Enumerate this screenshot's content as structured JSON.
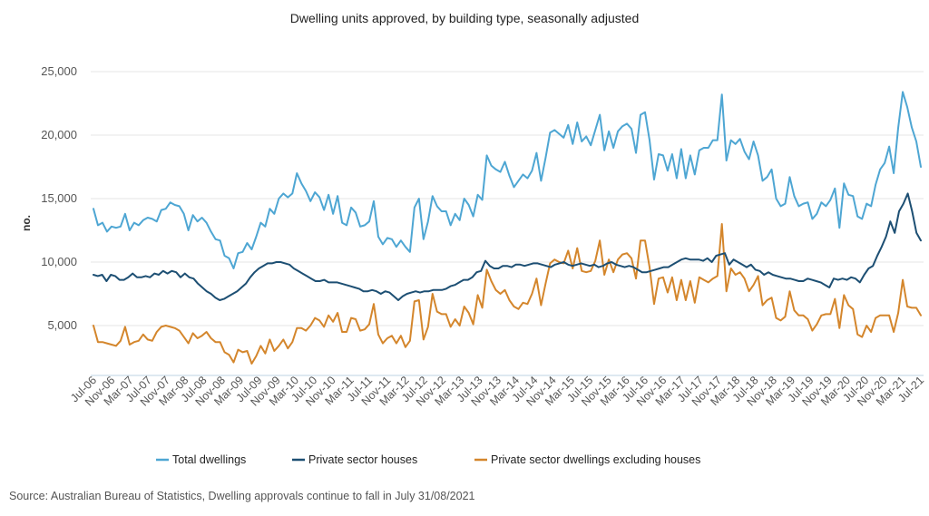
{
  "chart_data": {
    "type": "line",
    "title": "Dwelling units approved, by building type, seasonally adjusted",
    "ylabel": "no.",
    "xlabel": "",
    "ylim": [
      0,
      25000
    ],
    "yticks": [
      "5,000",
      "10,000",
      "15,000",
      "20,000",
      "25,000"
    ],
    "ytick_values": [
      5000,
      10000,
      15000,
      20000,
      25000
    ],
    "xtick_labels": [
      "Jul-06",
      "Nov-06",
      "Mar-07",
      "Jul-07",
      "Nov-07",
      "Mar-08",
      "Jul-08",
      "Nov-08",
      "Mar-09",
      "Jul-09",
      "Nov-09",
      "Mar-10",
      "Jul-10",
      "Nov-10",
      "Mar-11",
      "Jul-11",
      "Nov-11",
      "Mar-12",
      "Jul-12",
      "Nov-12",
      "Mar-13",
      "Jul-13",
      "Nov-13",
      "Mar-14",
      "Jul-14",
      "Nov-14",
      "Mar-15",
      "Jul-15",
      "Nov-15",
      "Mar-16",
      "Jul-16",
      "Nov-16",
      "Mar-17",
      "Jul-17",
      "Nov-17",
      "Mar-18",
      "Jul-18",
      "Nov-18",
      "Mar-19",
      "Jul-19",
      "Nov-19",
      "Mar-20",
      "Jul-20",
      "Nov-20",
      "Mar-21",
      "Jul-21"
    ],
    "x_start": "Jul-06",
    "x_end": "Jul-21",
    "grid": true,
    "legend_position": "bottom",
    "series": [
      {
        "name": "Total dwellings",
        "color": "#4ea6d3",
        "values": [
          14200,
          12900,
          13100,
          12400,
          12800,
          12700,
          12800,
          13800,
          12500,
          13100,
          12900,
          13300,
          13500,
          13400,
          13200,
          14100,
          14200,
          14700,
          14500,
          14400,
          13800,
          12500,
          13700,
          13200,
          13500,
          13100,
          12400,
          11800,
          11700,
          10500,
          10300,
          9500,
          10700,
          10800,
          11500,
          11000,
          12000,
          13100,
          12800,
          14200,
          13800,
          15000,
          15400,
          15100,
          15400,
          17000,
          16200,
          15600,
          14800,
          15500,
          15100,
          14100,
          15300,
          13800,
          15200,
          13100,
          12900,
          14300,
          13900,
          12800,
          12900,
          13200,
          14800,
          12000,
          11400,
          11900,
          11800,
          11200,
          11700,
          11200,
          10800,
          14300,
          15000,
          11800,
          13200,
          15200,
          14400,
          14000,
          14000,
          12900,
          13800,
          13300,
          15000,
          14500,
          13600,
          15300,
          14900,
          18400,
          17600,
          17300,
          17100,
          17900,
          16800,
          15900,
          16400,
          16900,
          16600,
          17200,
          18600,
          16400,
          18200,
          20200,
          20400,
          20100,
          19800,
          20800,
          19300,
          21000,
          19500,
          19900,
          19200,
          20400,
          21600,
          18800,
          20300,
          19000,
          20300,
          20700,
          20900,
          20500,
          18600,
          21600,
          21800,
          19600,
          16500,
          18500,
          18400,
          17200,
          18500,
          16600,
          18900,
          16600,
          18400,
          16900,
          18800,
          19000,
          19000,
          19600,
          19600,
          23200,
          18000,
          19600,
          19300,
          19700,
          18700,
          18100,
          19500,
          18400,
          16400,
          16700,
          17300,
          15000,
          14400,
          14600,
          16700,
          15200,
          14400,
          14600,
          14700,
          13400,
          13800,
          14700,
          14400,
          14900,
          15800,
          12700,
          16200,
          15300,
          15200,
          13600,
          13400,
          14600,
          14400,
          16100,
          17300,
          17800,
          19100,
          17000,
          20600,
          23400,
          22200,
          20600,
          19500,
          17500
        ]
      },
      {
        "name": "Private sector houses",
        "color": "#1d4f73",
        "values": [
          9000,
          8900,
          9000,
          8500,
          9000,
          8900,
          8600,
          8600,
          8800,
          9100,
          8800,
          8800,
          8900,
          8800,
          9100,
          9000,
          9300,
          9100,
          9300,
          9200,
          8800,
          9100,
          8800,
          8700,
          8300,
          8000,
          7700,
          7500,
          7200,
          7000,
          7100,
          7300,
          7500,
          7700,
          8000,
          8300,
          8800,
          9200,
          9500,
          9700,
          9900,
          9900,
          10000,
          10000,
          9900,
          9800,
          9500,
          9300,
          9100,
          8900,
          8700,
          8500,
          8500,
          8600,
          8400,
          8400,
          8400,
          8300,
          8200,
          8100,
          8000,
          7900,
          7700,
          7700,
          7800,
          7700,
          7500,
          7700,
          7600,
          7300,
          7000,
          7300,
          7500,
          7600,
          7700,
          7600,
          7700,
          7700,
          7800,
          7800,
          7800,
          7900,
          8100,
          8200,
          8400,
          8600,
          8600,
          8800,
          9200,
          9300,
          10100,
          9700,
          9500,
          9500,
          9700,
          9700,
          9600,
          9800,
          9800,
          9700,
          9800,
          9900,
          9900,
          9800,
          9700,
          9600,
          9800,
          9900,
          10000,
          9800,
          9700,
          9800,
          9900,
          9800,
          9700,
          9800,
          9600,
          9700,
          9900,
          10000,
          9800,
          9700,
          9600,
          9700,
          9600,
          9400,
          9200,
          9200,
          9300,
          9400,
          9500,
          9600,
          9600,
          9800,
          10000,
          10200,
          10300,
          10200,
          10200,
          10200,
          10100,
          10300,
          10000,
          10500,
          10600,
          10700,
          9800,
          10200,
          10000,
          9800,
          9600,
          9800,
          9400,
          9300,
          9000,
          9200,
          9000,
          8900,
          8800,
          8700,
          8700,
          8600,
          8500,
          8500,
          8700,
          8600,
          8500,
          8400,
          8200,
          8000,
          8700,
          8600,
          8700,
          8600,
          8800,
          8700,
          8400,
          9000,
          9500,
          9700,
          10500,
          11200,
          12000,
          13200,
          12300,
          14000,
          14600,
          15400,
          14000,
          12300,
          11700
        ]
      },
      {
        "name": "Private sector dwellings excluding houses",
        "color": "#d4862c",
        "values": [
          5000,
          3700,
          3700,
          3600,
          3500,
          3400,
          3800,
          4900,
          3500,
          3700,
          3800,
          4300,
          3900,
          3800,
          4500,
          4900,
          5000,
          4900,
          4800,
          4600,
          4100,
          3600,
          4400,
          4000,
          4200,
          4500,
          4000,
          3700,
          3700,
          2900,
          2700,
          2100,
          3100,
          2900,
          3000,
          2000,
          2600,
          3400,
          2800,
          3900,
          3000,
          3400,
          3900,
          3200,
          3700,
          4800,
          4800,
          4600,
          5000,
          5600,
          5400,
          4900,
          5800,
          5300,
          6000,
          4500,
          4500,
          5600,
          5500,
          4600,
          4700,
          5100,
          6700,
          4300,
          3600,
          4000,
          4200,
          3600,
          4200,
          3300,
          3800,
          6900,
          7000,
          3900,
          4900,
          7500,
          6100,
          5900,
          5900,
          4900,
          5500,
          5000,
          6500,
          6000,
          5100,
          7400,
          6400,
          9400,
          8500,
          7800,
          7500,
          7800,
          7000,
          6500,
          6300,
          6800,
          6700,
          7500,
          8700,
          6600,
          8300,
          9900,
          10200,
          10000,
          9900,
          10900,
          9500,
          11100,
          9300,
          9200,
          9300,
          10100,
          11700,
          9000,
          10200,
          9200,
          10200,
          10600,
          10700,
          10300,
          8700,
          11700,
          11700,
          9600,
          6700,
          8700,
          8800,
          7600,
          8800,
          7000,
          8600,
          7000,
          8500,
          6800,
          8800,
          8600,
          8400,
          8700,
          8900,
          13000,
          7700,
          9500,
          9000,
          9200,
          8700,
          7700,
          8200,
          8900,
          6600,
          7000,
          7200,
          5600,
          5400,
          5700,
          7700,
          6200,
          5800,
          5800,
          5500,
          4600,
          5100,
          5800,
          5900,
          5900,
          7100,
          4800,
          7400,
          6600,
          6300,
          4300,
          4100,
          5000,
          4500,
          5600,
          5800,
          5800,
          5800,
          4500,
          6000,
          8600,
          6500,
          6400,
          6400,
          5800
        ]
      }
    ]
  },
  "source": "Source: Australian Bureau of Statistics, Dwelling approvals continue to fall in July 31/08/2021"
}
